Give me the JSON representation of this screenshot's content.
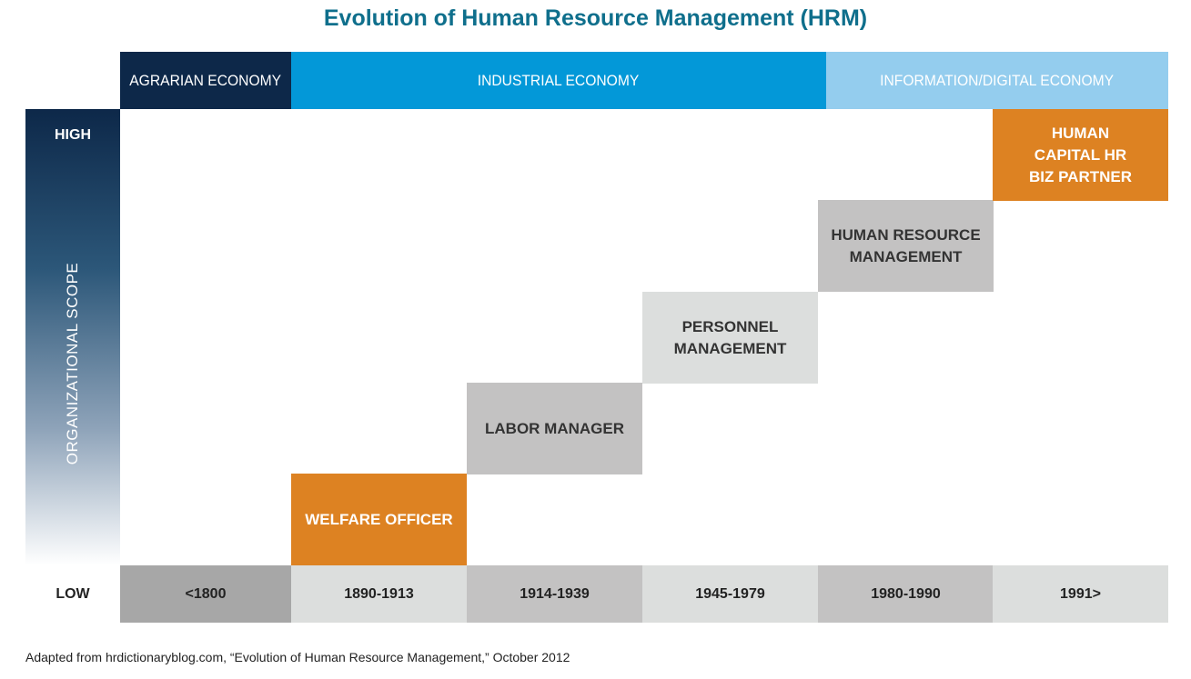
{
  "title": "Evolution of Human Resource Management (HRM)",
  "economies": [
    "AGRARIAN ECONOMY",
    "INDUSTRIAL ECONOMY",
    "INFORMATION/DIGITAL ECONOMY"
  ],
  "scope": {
    "axis_label": "ORGANIZATIONAL SCOPE",
    "high": "HIGH",
    "low": "LOW"
  },
  "periods": [
    "<1800",
    "1890-1913",
    "1914-1939",
    "1945-1979",
    "1980-1990",
    "1991>"
  ],
  "stages": [
    "WELFARE OFFICER",
    "LABOR MANAGER",
    "PERSONNEL\nMANAGEMENT",
    "HUMAN RESOURCE\nMANAGEMENT",
    "HUMAN\nCAPITAL HR\nBIZ PARTNER"
  ],
  "colors": {
    "title": "#0f6f8c",
    "agrarian": "#0d2849",
    "industrial": "#0398d8",
    "information": "#94cdee",
    "highlight_stage": "#dd8222"
  },
  "source": "Adapted from hrdictionaryblog.com, “Evolution of Human Resource Management,” October 2012"
}
